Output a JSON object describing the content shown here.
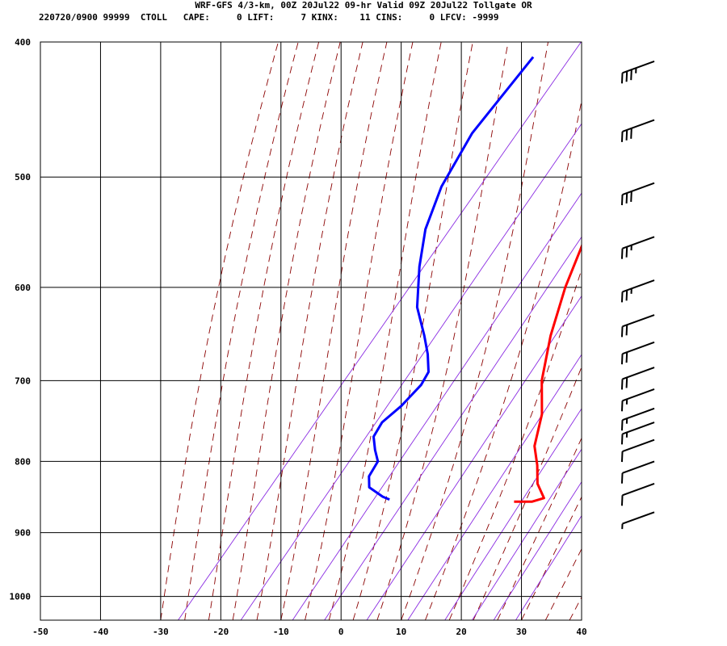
{
  "header": {
    "title": "WRF-GFS 4/3-km, 00Z 20Jul22 09-hr Valid 09Z 20Jul22 Tollgate OR",
    "stats": "220720/0900 99999  CTOLL   CAPE:     0 LIFT:     7 KINX:    11 CINS:     0 LFCV: -9999"
  },
  "chart_data": {
    "type": "skew-t",
    "title": "WRF-GFS 4/3-km, 00Z 20Jul22 09-hr Valid 09Z 20Jul22 Tollgate OR",
    "xlabel": "",
    "ylabel": "",
    "x_range": [
      -50,
      40
    ],
    "y_range": [
      400,
      1040
    ],
    "y_scale": "log",
    "x_ticks": [
      -50,
      -40,
      -30,
      -20,
      -10,
      0,
      10,
      20,
      30,
      40
    ],
    "x_tick_labels": [
      "-50",
      "-40",
      "-30",
      "-20",
      "-10",
      "0",
      "10",
      "20",
      "30",
      "40"
    ],
    "y_ticks": [
      400,
      500,
      600,
      700,
      800,
      900,
      1000
    ],
    "y_tick_labels": [
      "400",
      "500",
      "600",
      "700",
      "800",
      "900",
      "1000"
    ],
    "grid": true,
    "series": [
      {
        "color": "#ff0000",
        "points": [
          [
            -19.5,
            410
          ],
          [
            -17,
            450
          ],
          [
            -14,
            500
          ],
          [
            -10.5,
            550
          ],
          [
            -7,
            600
          ],
          [
            -3,
            650
          ],
          [
            1.5,
            700
          ],
          [
            6,
            740
          ],
          [
            9,
            780
          ],
          [
            12,
            805
          ],
          [
            14.5,
            830
          ],
          [
            17.5,
            850
          ],
          [
            16,
            855
          ],
          [
            13,
            855
          ]
        ]
      },
      {
        "color": "#0000ff",
        "points": [
          [
            -43,
            410
          ],
          [
            -43,
            465
          ],
          [
            -41,
            508
          ],
          [
            -38,
            545
          ],
          [
            -34,
            580
          ],
          [
            -29,
            620
          ],
          [
            -24,
            650
          ],
          [
            -21,
            670
          ],
          [
            -18.5,
            690
          ],
          [
            -18,
            705
          ],
          [
            -18.5,
            730
          ],
          [
            -19.5,
            750
          ],
          [
            -19,
            768
          ],
          [
            -17,
            785
          ],
          [
            -15,
            800
          ],
          [
            -14.5,
            820
          ],
          [
            -13,
            835
          ],
          [
            -9.5,
            848
          ],
          [
            -8,
            852
          ]
        ]
      }
    ],
    "wind_barbs": [
      {
        "p": 413,
        "speed": 35
      },
      {
        "p": 455,
        "speed": 30
      },
      {
        "p": 505,
        "speed": 30
      },
      {
        "p": 552,
        "speed": 25
      },
      {
        "p": 593,
        "speed": 25
      },
      {
        "p": 628,
        "speed": 20
      },
      {
        "p": 657,
        "speed": 20
      },
      {
        "p": 685,
        "speed": 20
      },
      {
        "p": 710,
        "speed": 15
      },
      {
        "p": 733,
        "speed": 15
      },
      {
        "p": 750,
        "speed": 15
      },
      {
        "p": 772,
        "speed": 10
      },
      {
        "p": 800,
        "speed": 10
      },
      {
        "p": 830,
        "speed": 10
      },
      {
        "p": 870,
        "speed": 5
      }
    ],
    "colors": {
      "isotherm": "#000000",
      "isobar": "#000000",
      "dry_adiabat": "#008000",
      "moist_adiabat": "#8b0000",
      "mixing_ratio": "#8a2be2",
      "temperature": "#ff0000",
      "dewpoint": "#0000ff",
      "barb": "#000000"
    }
  }
}
